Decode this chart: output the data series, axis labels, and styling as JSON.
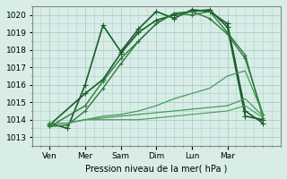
{
  "title": "",
  "xlabel": "Pression niveau de la mer( hPa )",
  "ylim": [
    1012.5,
    1020.5
  ],
  "xlim": [
    0,
    7
  ],
  "yticks": [
    1013,
    1014,
    1015,
    1016,
    1017,
    1018,
    1019,
    1020
  ],
  "xtick_labels": [
    "Ven",
    "Mer",
    "Sam",
    "Dim",
    "Lun",
    "Mar"
  ],
  "xtick_positions": [
    0.5,
    1.5,
    2.5,
    3.5,
    4.5,
    5.5
  ],
  "bg_color": "#d8ede8",
  "grid_color": "#b0cfc8",
  "series": [
    {
      "x": [
        0.5,
        1.0,
        1.5,
        2.0,
        2.5,
        3.0,
        3.5,
        4.0,
        4.5,
        5.0,
        5.5,
        6.0,
        6.5
      ],
      "y": [
        1013.8,
        1013.5,
        1016.0,
        1019.4,
        1017.9,
        1019.2,
        1020.2,
        1019.8,
        1020.3,
        1020.2,
        1019.5,
        1014.5,
        1013.8
      ],
      "color": "#1a5c2a",
      "lw": 1.2,
      "marker": "+",
      "ms": 4
    },
    {
      "x": [
        0.5,
        1.5,
        2.0,
        2.5,
        3.0,
        3.5,
        4.0,
        4.5,
        5.0,
        5.5,
        6.0,
        6.5
      ],
      "y": [
        1013.7,
        1015.5,
        1016.3,
        1017.8,
        1019.0,
        1019.7,
        1020.0,
        1020.2,
        1020.3,
        1019.3,
        1014.2,
        1014.0
      ],
      "color": "#1a5c2a",
      "lw": 1.2,
      "marker": "+",
      "ms": 4
    },
    {
      "x": [
        0.5,
        1.5,
        2.0,
        2.5,
        3.0,
        3.5,
        4.0,
        4.5,
        5.0,
        5.5,
        6.0,
        6.5
      ],
      "y": [
        1013.6,
        1014.8,
        1016.2,
        1017.5,
        1018.5,
        1019.5,
        1020.1,
        1020.0,
        1020.2,
        1019.0,
        1017.7,
        1014.1
      ],
      "color": "#2d7a3a",
      "lw": 1.0,
      "marker": "+",
      "ms": 3
    },
    {
      "x": [
        0.5,
        1.0,
        1.5,
        2.0,
        2.5,
        3.0,
        3.5,
        4.0,
        4.5,
        5.0,
        5.5,
        6.0,
        6.5
      ],
      "y": [
        1013.6,
        1013.7,
        1014.5,
        1015.8,
        1017.2,
        1018.5,
        1019.5,
        1020.1,
        1020.2,
        1019.8,
        1018.9,
        1017.5,
        1014.3
      ],
      "color": "#2d7a3a",
      "lw": 1.0,
      "marker": "+",
      "ms": 3
    },
    {
      "x": [
        0.5,
        1.0,
        1.5,
        2.0,
        2.5,
        3.0,
        3.5,
        4.0,
        4.5,
        5.0,
        5.5,
        6.0,
        6.5
      ],
      "y": [
        1013.8,
        1013.8,
        1014.0,
        1014.2,
        1014.3,
        1014.5,
        1014.8,
        1015.2,
        1015.5,
        1015.8,
        1016.5,
        1016.8,
        1014.3
      ],
      "color": "#4a9a5a",
      "lw": 0.9,
      "marker": null,
      "ms": 0
    },
    {
      "x": [
        0.5,
        1.0,
        1.5,
        2.0,
        2.5,
        3.0,
        3.5,
        4.0,
        4.5,
        5.0,
        5.5,
        6.0,
        6.5
      ],
      "y": [
        1013.8,
        1013.8,
        1014.0,
        1014.1,
        1014.2,
        1014.3,
        1014.4,
        1014.5,
        1014.6,
        1014.7,
        1014.8,
        1015.2,
        1014.2
      ],
      "color": "#4a9a5a",
      "lw": 0.9,
      "marker": null,
      "ms": 0
    },
    {
      "x": [
        0.5,
        1.0,
        1.5,
        2.0,
        2.5,
        3.0,
        3.5,
        4.0,
        4.5,
        5.0,
        5.5,
        6.0,
        6.5
      ],
      "y": [
        1013.8,
        1013.8,
        1014.0,
        1014.0,
        1014.0,
        1014.0,
        1014.1,
        1014.2,
        1014.3,
        1014.4,
        1014.5,
        1014.8,
        1014.1
      ],
      "color": "#4a9a5a",
      "lw": 0.8,
      "marker": null,
      "ms": 0
    }
  ]
}
